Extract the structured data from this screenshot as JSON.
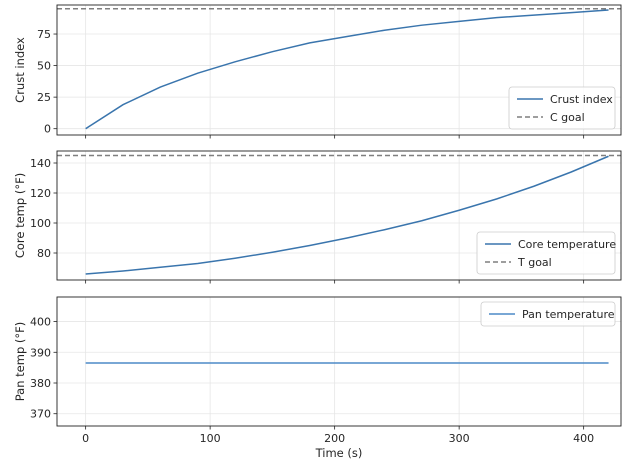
{
  "chart_data": [
    {
      "type": "line",
      "ylabel": "Crust index",
      "xlim": [
        -23,
        430
      ],
      "ylim": [
        -5,
        98
      ],
      "xticks": [
        0,
        100,
        200,
        300,
        400
      ],
      "yticks": [
        0,
        25,
        50,
        75
      ],
      "ytick_labels": [
        "0",
        "25",
        "50",
        "75"
      ],
      "grid": true,
      "legend": "bottom-right",
      "series": [
        {
          "name": "Crust index",
          "style": "solid",
          "color": "#3a75ad",
          "x": [
            0,
            30,
            60,
            90,
            120,
            150,
            180,
            210,
            240,
            270,
            300,
            330,
            360,
            390,
            420
          ],
          "y": [
            0,
            19,
            33,
            44,
            53,
            61,
            68,
            73,
            78,
            82,
            85,
            88,
            90,
            92,
            94
          ]
        },
        {
          "name": "C goal",
          "style": "dashed",
          "color": "#7f7f7f",
          "hline": 95
        }
      ]
    },
    {
      "type": "line",
      "ylabel": "Core temp (°F)",
      "xlim": [
        -23,
        430
      ],
      "ylim": [
        62,
        148
      ],
      "xticks": [
        0,
        100,
        200,
        300,
        400
      ],
      "yticks": [
        80,
        100,
        120,
        140
      ],
      "ytick_labels": [
        "80",
        "100",
        "120",
        "140"
      ],
      "grid": true,
      "legend": "bottom-right",
      "series": [
        {
          "name": "Core temperature",
          "style": "solid",
          "color": "#3a75ad",
          "x": [
            0,
            30,
            60,
            90,
            120,
            150,
            180,
            210,
            240,
            270,
            300,
            330,
            360,
            390,
            420
          ],
          "y": [
            66,
            68,
            70.5,
            73,
            76.5,
            80.5,
            85,
            90,
            95.5,
            101.5,
            108.5,
            116,
            124.5,
            134,
            144.5
          ]
        },
        {
          "name": "T goal",
          "style": "dashed",
          "color": "#7f7f7f",
          "hline": 145
        }
      ]
    },
    {
      "type": "line",
      "ylabel": "Pan temp (°F)",
      "xlabel": "Time (s)",
      "xlim": [
        -23,
        430
      ],
      "ylim": [
        366,
        408
      ],
      "xticks": [
        0,
        100,
        200,
        300,
        400
      ],
      "xtick_labels": [
        "0",
        "100",
        "200",
        "300",
        "400"
      ],
      "yticks": [
        370,
        380,
        390,
        400
      ],
      "ytick_labels": [
        "370",
        "380",
        "390",
        "400"
      ],
      "grid": true,
      "legend": "top-right",
      "series": [
        {
          "name": "Pan temperature",
          "style": "solid",
          "color": "#4d8ac7",
          "x": [
            0,
            420
          ],
          "y": [
            386.5,
            386.5
          ]
        }
      ]
    }
  ]
}
